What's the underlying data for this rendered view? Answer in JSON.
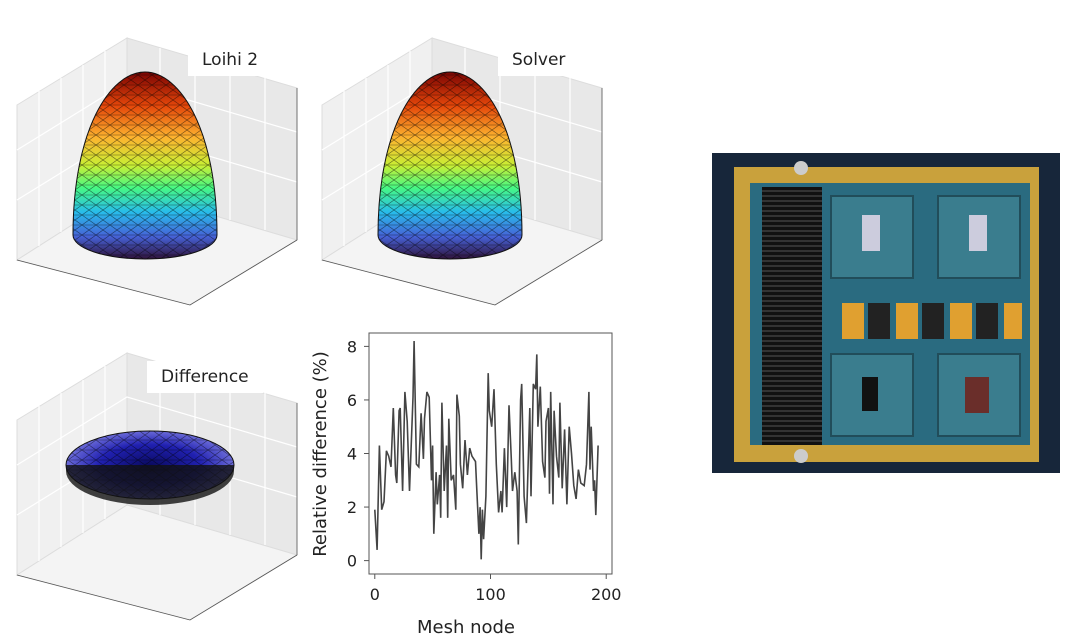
{
  "panels": {
    "loihi_title": "Loihi 2",
    "solver_title": "Solver",
    "difference_title": "Difference"
  },
  "colors": {
    "surface_top": "#7a0403",
    "surface_bottom": "#30123b",
    "difference_surface": "#1a1a9a",
    "line": "#444444",
    "board_gold": "#c9a13c",
    "board_pcb": "#2a6b80"
  },
  "chart_data": {
    "type": "line",
    "title": "",
    "xlabel": "Mesh node",
    "ylabel": "Relative difference (%)",
    "xlim": [
      -5,
      205
    ],
    "ylim": [
      -0.5,
      8.5
    ],
    "xticks": [
      "0",
      "100",
      "200"
    ],
    "yticks": [
      "0",
      "2",
      "4",
      "6",
      "8"
    ],
    "grid": false,
    "series": [
      {
        "name": "relative difference",
        "x": [
          0,
          2,
          4,
          6,
          8,
          10,
          12,
          14,
          16,
          18,
          19,
          21,
          22,
          24,
          26,
          28,
          30,
          33,
          34,
          36,
          38,
          40,
          42,
          43,
          45,
          47,
          49,
          50,
          51,
          53,
          54,
          56,
          57,
          58,
          60,
          62,
          63,
          64,
          66,
          68,
          70,
          71,
          73,
          74,
          76,
          78,
          80,
          82,
          84,
          87,
          88,
          90,
          91,
          92,
          93,
          94,
          96,
          98,
          99,
          101,
          103,
          105,
          107,
          109,
          110,
          112,
          114,
          116,
          118,
          119,
          121,
          123,
          124,
          126,
          127,
          129,
          131,
          134,
          135,
          137,
          139,
          140,
          141,
          143,
          145,
          147,
          148,
          150,
          151,
          152,
          154,
          155,
          157,
          159,
          160,
          162,
          164,
          166,
          168,
          170,
          172,
          174,
          176,
          178,
          181,
          183,
          185,
          186,
          187,
          189,
          190,
          191,
          193
        ],
        "y": [
          1.9,
          0.4,
          4.3,
          1.9,
          2.2,
          4.1,
          3.9,
          3.5,
          5.7,
          3.2,
          2.9,
          5.6,
          5.7,
          2.6,
          6.3,
          5.2,
          2.6,
          6.1,
          8.2,
          3.6,
          3.5,
          5.5,
          3.8,
          5.3,
          6.3,
          6.1,
          3.0,
          4.3,
          1.0,
          3.3,
          2.1,
          3.2,
          1.6,
          5.9,
          2.6,
          4.3,
          1.6,
          5.3,
          3.0,
          3.2,
          1.9,
          6.2,
          5.4,
          3.6,
          2.7,
          4.5,
          3.2,
          4.2,
          3.9,
          3.7,
          2.8,
          1.0,
          2.0,
          0.05,
          1.9,
          0.8,
          2.4,
          7.0,
          5.6,
          5.0,
          6.4,
          3.6,
          1.8,
          2.6,
          1.8,
          4.2,
          2.0,
          5.8,
          3.8,
          2.6,
          3.3,
          2.6,
          0.6,
          6.0,
          6.6,
          2.4,
          1.4,
          5.7,
          2.4,
          6.6,
          6.4,
          7.7,
          5.0,
          6.5,
          3.7,
          3.1,
          5.2,
          5.7,
          2.5,
          6.3,
          2.1,
          5.6,
          3.9,
          3.1,
          5.9,
          2.7,
          4.9,
          2.1,
          5.0,
          4.0,
          2.8,
          2.3,
          3.4,
          2.9,
          2.8,
          3.6,
          6.3,
          3.4,
          5.0,
          2.6,
          3.0,
          1.7,
          4.3
        ]
      }
    ]
  }
}
